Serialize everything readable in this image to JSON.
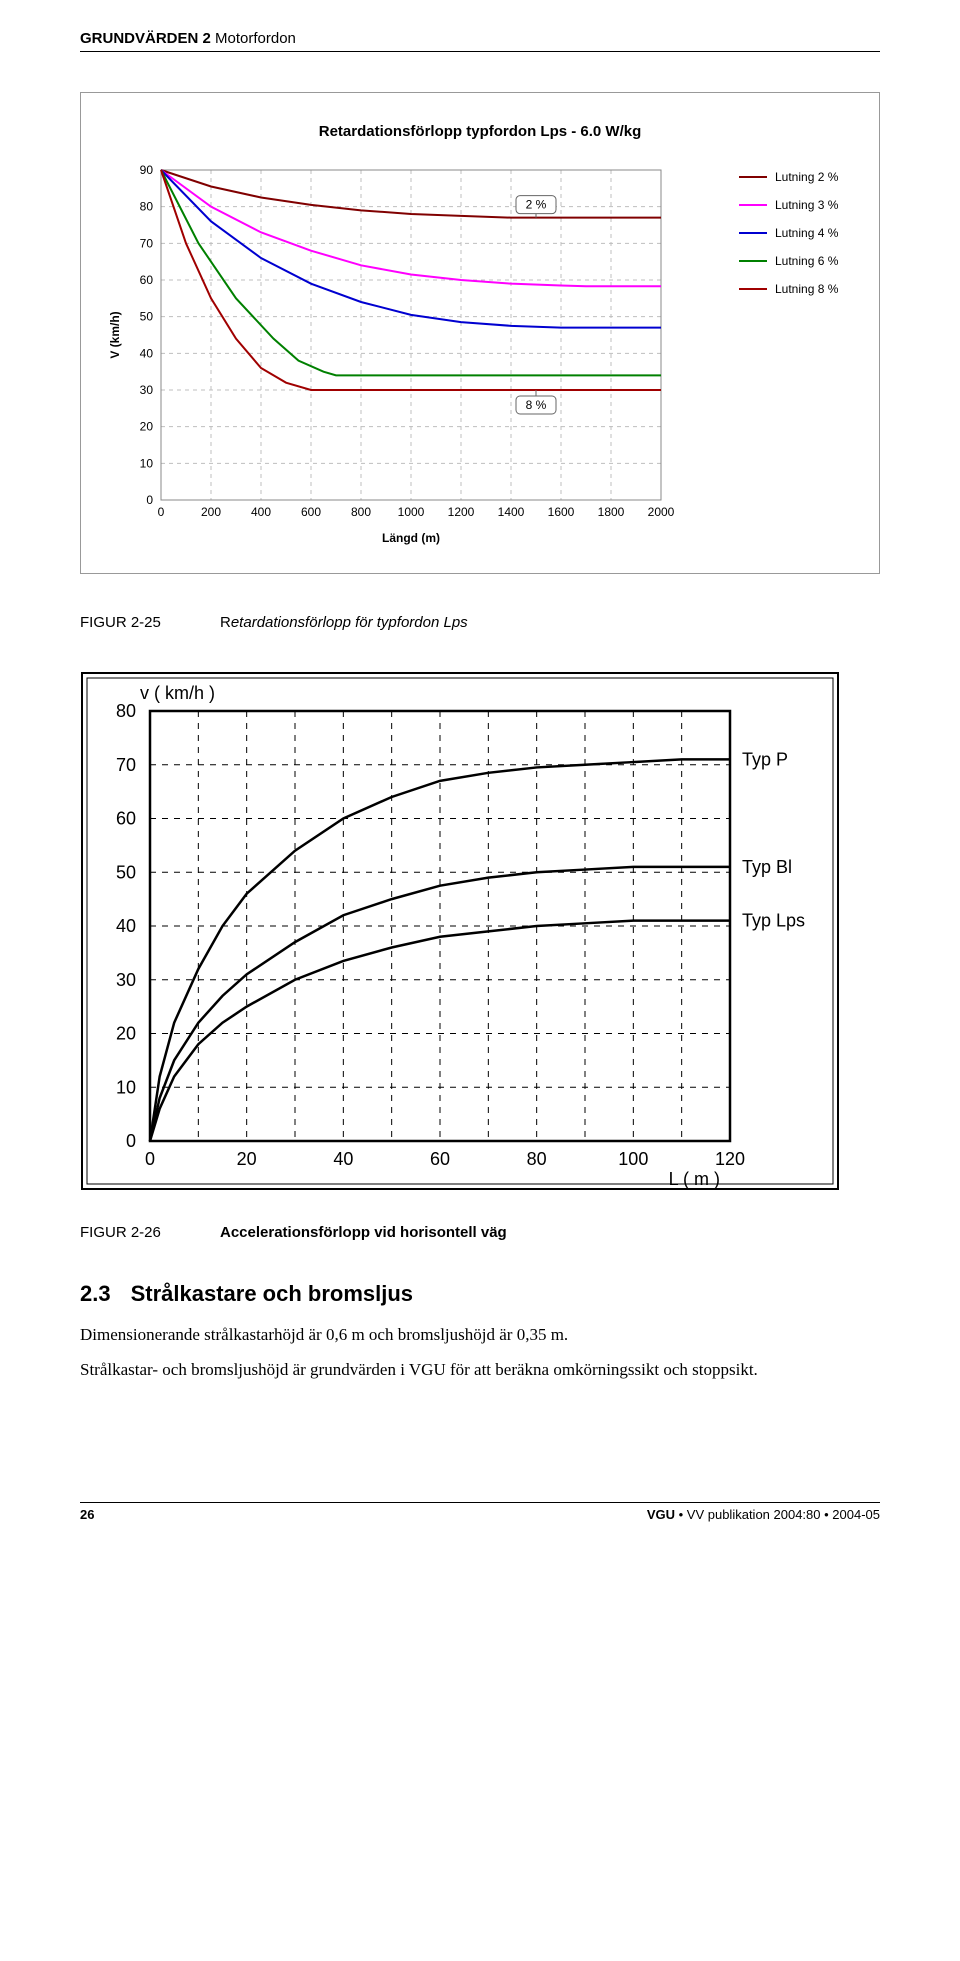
{
  "header": {
    "bold": "GRUNDVÄRDEN  2",
    "rest": " Motorfordon"
  },
  "chart1": {
    "title": "Retardationsförlopp typfordon Lps - 6.0 W/kg",
    "ylabel": "V (km/h)",
    "xlabel": "Längd (m)",
    "xticks": [
      0,
      200,
      400,
      600,
      800,
      1000,
      1200,
      1400,
      1600,
      1800,
      2000
    ],
    "yticks": [
      0,
      10,
      20,
      30,
      40,
      50,
      60,
      70,
      80,
      90
    ],
    "xlim": [
      0,
      2000
    ],
    "ylim": [
      0,
      90
    ],
    "annot_2pct": "2 %",
    "annot_8pct": "8 %",
    "grid_color": "#bfbfbf",
    "legend": [
      {
        "label": "Lutning 2 %",
        "color": "#800000"
      },
      {
        "label": "Lutning 3 %",
        "color": "#ff00ff"
      },
      {
        "label": "Lutning 4 %",
        "color": "#0000d0"
      },
      {
        "label": "Lutning 6 %",
        "color": "#008000"
      },
      {
        "label": "Lutning 8 %",
        "color": "#a00000"
      }
    ],
    "series": [
      {
        "color": "#800000",
        "points": [
          [
            0,
            90
          ],
          [
            200,
            85.5
          ],
          [
            400,
            82.5
          ],
          [
            600,
            80.5
          ],
          [
            800,
            79
          ],
          [
            1000,
            78
          ],
          [
            1200,
            77.5
          ],
          [
            1400,
            77
          ],
          [
            1500,
            77
          ],
          [
            2000,
            77
          ]
        ]
      },
      {
        "color": "#ff00ff",
        "points": [
          [
            0,
            90
          ],
          [
            200,
            80
          ],
          [
            400,
            73
          ],
          [
            600,
            68
          ],
          [
            800,
            64
          ],
          [
            1000,
            61.5
          ],
          [
            1200,
            60
          ],
          [
            1400,
            59
          ],
          [
            1600,
            58.5
          ],
          [
            1700,
            58.3
          ],
          [
            2000,
            58.3
          ]
        ]
      },
      {
        "color": "#0000d0",
        "points": [
          [
            0,
            90
          ],
          [
            200,
            76
          ],
          [
            400,
            66
          ],
          [
            600,
            59
          ],
          [
            800,
            54
          ],
          [
            1000,
            50.5
          ],
          [
            1200,
            48.5
          ],
          [
            1400,
            47.5
          ],
          [
            1600,
            47
          ],
          [
            1700,
            47
          ],
          [
            2000,
            47
          ]
        ]
      },
      {
        "color": "#008000",
        "points": [
          [
            0,
            90
          ],
          [
            150,
            70
          ],
          [
            300,
            55
          ],
          [
            450,
            44
          ],
          [
            550,
            38
          ],
          [
            650,
            35
          ],
          [
            700,
            34
          ],
          [
            800,
            34
          ],
          [
            2000,
            34
          ]
        ]
      },
      {
        "color": "#a00000",
        "points": [
          [
            0,
            90
          ],
          [
            100,
            70
          ],
          [
            200,
            55
          ],
          [
            300,
            44
          ],
          [
            400,
            36
          ],
          [
            500,
            32
          ],
          [
            600,
            30
          ],
          [
            650,
            30
          ],
          [
            2000,
            30
          ]
        ]
      }
    ]
  },
  "caption1": {
    "num": "FIGUR 2-25",
    "prefix": "R",
    "text": "etardationsförlopp för typfordon Lps"
  },
  "chart2": {
    "ylabel": "v ( km/h )",
    "xlabel": "L ( m )",
    "yticks": [
      0,
      10,
      20,
      30,
      40,
      50,
      60,
      70,
      80
    ],
    "xticks": [
      0,
      20,
      40,
      60,
      80,
      100,
      120
    ],
    "xlim": [
      0,
      120
    ],
    "ylim": [
      0,
      80
    ],
    "labels": {
      "p": "Typ P",
      "bl": "Typ Bl",
      "lps": "Typ Lps"
    },
    "series": [
      {
        "name": "Typ P",
        "points": [
          [
            0,
            0
          ],
          [
            2,
            12
          ],
          [
            5,
            22
          ],
          [
            10,
            32
          ],
          [
            15,
            40
          ],
          [
            20,
            46
          ],
          [
            30,
            54
          ],
          [
            40,
            60
          ],
          [
            50,
            64
          ],
          [
            60,
            67
          ],
          [
            70,
            68.5
          ],
          [
            80,
            69.5
          ],
          [
            90,
            70
          ],
          [
            100,
            70.5
          ],
          [
            110,
            71
          ],
          [
            120,
            71
          ]
        ]
      },
      {
        "name": "Typ Bl",
        "points": [
          [
            0,
            0
          ],
          [
            2,
            8
          ],
          [
            5,
            15
          ],
          [
            10,
            22
          ],
          [
            15,
            27
          ],
          [
            20,
            31
          ],
          [
            30,
            37
          ],
          [
            40,
            42
          ],
          [
            50,
            45
          ],
          [
            60,
            47.5
          ],
          [
            70,
            49
          ],
          [
            80,
            50
          ],
          [
            90,
            50.5
          ],
          [
            100,
            51
          ],
          [
            110,
            51
          ],
          [
            120,
            51
          ]
        ]
      },
      {
        "name": "Typ Lps",
        "points": [
          [
            0,
            0
          ],
          [
            2,
            6
          ],
          [
            5,
            12
          ],
          [
            10,
            18
          ],
          [
            15,
            22
          ],
          [
            20,
            25
          ],
          [
            30,
            30
          ],
          [
            40,
            33.5
          ],
          [
            50,
            36
          ],
          [
            60,
            38
          ],
          [
            70,
            39
          ],
          [
            80,
            40
          ],
          [
            90,
            40.5
          ],
          [
            100,
            41
          ],
          [
            110,
            41
          ],
          [
            120,
            41
          ]
        ]
      }
    ]
  },
  "caption2": {
    "num": "FIGUR 2-26",
    "text": "Accelerationsförlopp vid horisontell väg"
  },
  "section": {
    "num": "2.3",
    "title": "Strålkastare och bromsljus"
  },
  "para1": "Dimensionerande strålkastarhöjd är 0,6 m och bromsljushöjd är 0,35 m.",
  "para2": "Strålkastar- och bromsljushöjd är grundvärden i VGU för att beräkna omkörningssikt och stoppsikt.",
  "footer": {
    "page": "26",
    "pub_bold": "VGU",
    "pub_rest": " • VV publikation 2004:80 • 2004-05"
  }
}
